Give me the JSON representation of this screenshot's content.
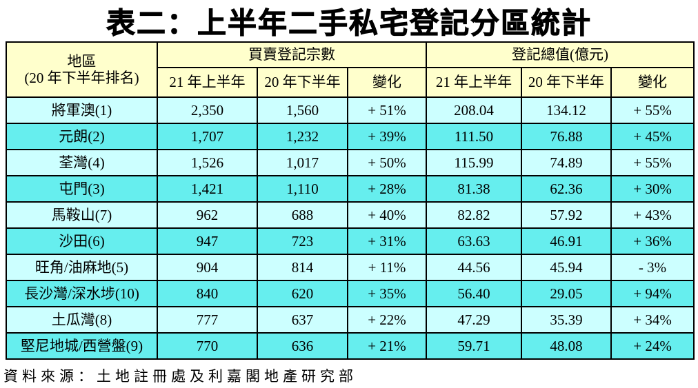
{
  "title": "表二：上半年二手私宅登記分區統計",
  "table": {
    "region_header": {
      "line1": "地區",
      "line2": "(20 年下半年排名)"
    },
    "groups": [
      {
        "label": "買賣登記宗數",
        "columns": [
          "21 年上半年",
          "20 年下半年",
          "變化"
        ]
      },
      {
        "label": "登記總值(億元)",
        "columns": [
          "21 年上半年",
          "20 年下半年",
          "變化"
        ]
      }
    ],
    "rows": [
      {
        "region": "將軍澳(1)",
        "deals_21h1": "2,350",
        "deals_20h2": "1,560",
        "deals_change": "+ 51%",
        "value_21h1": "208.04",
        "value_20h2": "134.12",
        "value_change": "+ 55%"
      },
      {
        "region": "元朗(2)",
        "deals_21h1": "1,707",
        "deals_20h2": "1,232",
        "deals_change": "+ 39%",
        "value_21h1": "111.50",
        "value_20h2": "76.88",
        "value_change": "+ 45%"
      },
      {
        "region": "荃灣(4)",
        "deals_21h1": "1,526",
        "deals_20h2": "1,017",
        "deals_change": "+ 50%",
        "value_21h1": "115.99",
        "value_20h2": "74.89",
        "value_change": "+ 55%"
      },
      {
        "region": "屯門(3)",
        "deals_21h1": "1,421",
        "deals_20h2": "1,110",
        "deals_change": "+ 28%",
        "value_21h1": "81.38",
        "value_20h2": "62.36",
        "value_change": "+ 30%"
      },
      {
        "region": "馬鞍山(7)",
        "deals_21h1": "962",
        "deals_20h2": "688",
        "deals_change": "+ 40%",
        "value_21h1": "82.82",
        "value_20h2": "57.92",
        "value_change": "+ 43%"
      },
      {
        "region": "沙田(6)",
        "deals_21h1": "947",
        "deals_20h2": "723",
        "deals_change": "+ 31%",
        "value_21h1": "63.63",
        "value_20h2": "46.91",
        "value_change": "+ 36%"
      },
      {
        "region": "旺角/油麻地(5)",
        "deals_21h1": "904",
        "deals_20h2": "814",
        "deals_change": "+ 11%",
        "value_21h1": "44.56",
        "value_20h2": "45.94",
        "value_change": "- 3%"
      },
      {
        "region": "長沙灣/深水埗(10)",
        "deals_21h1": "840",
        "deals_20h2": "620",
        "deals_change": "+ 35%",
        "value_21h1": "56.40",
        "value_20h2": "29.05",
        "value_change": "+ 94%"
      },
      {
        "region": "土瓜灣(8)",
        "deals_21h1": "777",
        "deals_20h2": "637",
        "deals_change": "+ 22%",
        "value_21h1": "47.29",
        "value_20h2": "35.39",
        "value_change": "+ 34%"
      },
      {
        "region": "堅尼地城/西營盤(9)",
        "deals_21h1": "770",
        "deals_20h2": "636",
        "deals_change": "+ 21%",
        "value_21h1": "59.71",
        "value_20h2": "48.08",
        "value_change": "+ 24%"
      }
    ]
  },
  "footer": "資料來源：土地註冊處及利嘉閣地產研究部",
  "colors": {
    "header_bg": "#FFFFCC",
    "row_light": "#CCFFFF",
    "row_bright": "#66EEEE",
    "border": "#000000"
  }
}
